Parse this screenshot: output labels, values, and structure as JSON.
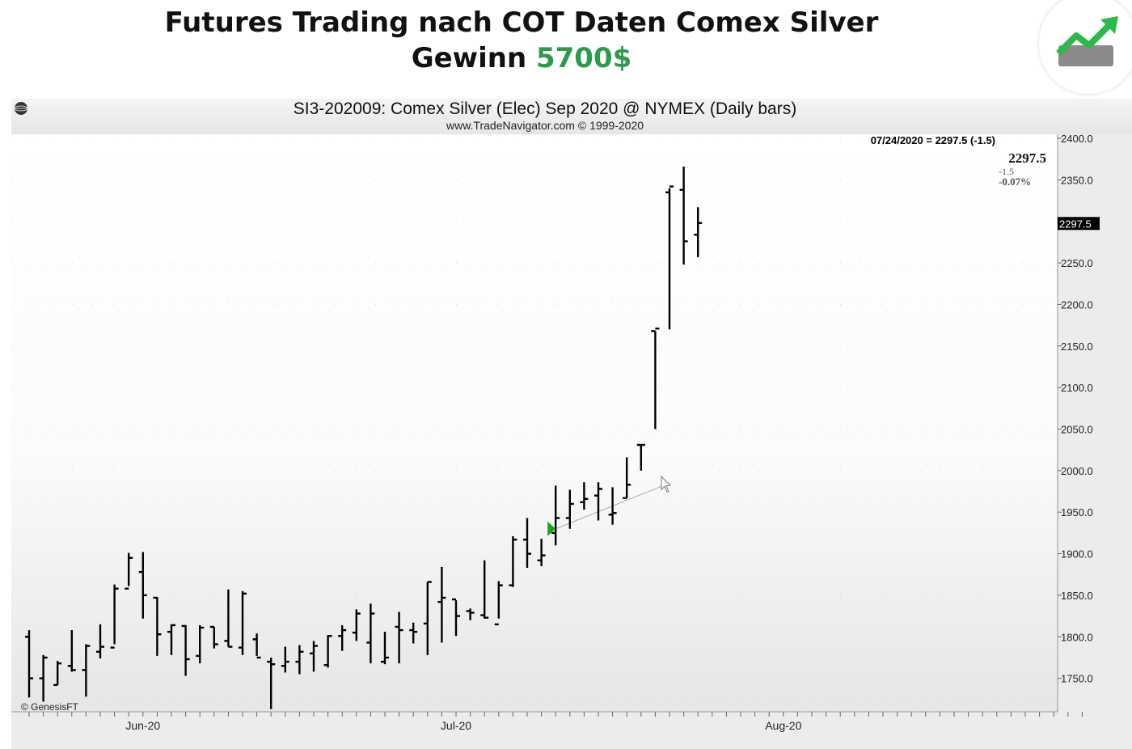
{
  "headline": {
    "line1": "Futures Trading nach COT Daten  Comex Silver",
    "line2_prefix": "Gewinn ",
    "line2_value": "5700$"
  },
  "colors": {
    "profit": "#2e9a4e",
    "signal_arrow": "#1aa51a",
    "bars": "#000000",
    "plot_bg_top": "#ffffff",
    "plot_bg_bottom": "#e8e8e8"
  },
  "logo": {
    "icon": "trending-up-icon"
  },
  "chart_header": {
    "globe_icon": "globe-icon",
    "title": "SI3-202009:  Comex Silver (Elec) Sep 2020 @ NYMEX  (Daily bars)",
    "source": "www.TradeNavigator.com © 1999-2020"
  },
  "quote": {
    "status_line": "07/24/2020 = 2297.5 (-1.5)",
    "last": "2297.5",
    "change": "-1.5",
    "change_pct": "-0.07%",
    "axis_marker": "2297.5"
  },
  "watermark": "© GenesisFT",
  "chart_data": {
    "type": "ohlc",
    "title": "SI3-202009:  Comex Silver (Elec) Sep 2020 @ NYMEX  (Daily bars)",
    "ylim": [
      1700,
      2400
    ],
    "yticks": [
      "2400.0",
      "2350.0",
      "2300.0",
      "2250.0",
      "2200.0",
      "2150.0",
      "2100.0",
      "2050.0",
      "2000.0",
      "1950.0",
      "1900.0",
      "1850.0",
      "1800.0",
      "1750.0"
    ],
    "ytick_values": [
      2400,
      2350,
      2300,
      2250,
      2200,
      2150,
      2100,
      2050,
      2000,
      1950,
      1900,
      1850,
      1800,
      1750
    ],
    "xticks": [
      {
        "label": "Jun-20",
        "index": 8
      },
      {
        "label": "Jul-20",
        "index": 30
      },
      {
        "label": "Aug-20",
        "index": 53
      }
    ],
    "n_slots": 75,
    "grid": true,
    "bars": [
      {
        "o": 1800,
        "h": 1808,
        "l": 1727,
        "c": 1750
      },
      {
        "o": 1750,
        "h": 1778,
        "l": 1722,
        "c": 1775
      },
      {
        "o": 1742,
        "h": 1771,
        "l": 1742,
        "c": 1768
      },
      {
        "o": 1765,
        "h": 1808,
        "l": 1758,
        "c": 1760
      },
      {
        "o": 1760,
        "h": 1791,
        "l": 1728,
        "c": 1789
      },
      {
        "o": 1782,
        "h": 1815,
        "l": 1774,
        "c": 1788
      },
      {
        "o": 1787,
        "h": 1863,
        "l": 1791,
        "c": 1858
      },
      {
        "o": 1858,
        "h": 1901,
        "l": 1861,
        "c": 1895
      },
      {
        "o": 1878,
        "h": 1902,
        "l": 1822,
        "c": 1850
      },
      {
        "o": 1847,
        "h": 1848,
        "l": 1777,
        "c": 1803
      },
      {
        "o": 1806,
        "h": 1815,
        "l": 1778,
        "c": 1814
      },
      {
        "o": 1813,
        "h": 1814,
        "l": 1753,
        "c": 1773
      },
      {
        "o": 1777,
        "h": 1814,
        "l": 1768,
        "c": 1811
      },
      {
        "o": 1812,
        "h": 1812,
        "l": 1786,
        "c": 1791
      },
      {
        "o": 1795,
        "h": 1857,
        "l": 1788,
        "c": 1788
      },
      {
        "o": 1787,
        "h": 1855,
        "l": 1778,
        "c": 1852
      },
      {
        "o": 1797,
        "h": 1804,
        "l": 1777,
        "c": 1775
      },
      {
        "o": 1770,
        "h": 1775,
        "l": 1713,
        "c": 1767
      },
      {
        "o": 1765,
        "h": 1788,
        "l": 1757,
        "c": 1770
      },
      {
        "o": 1770,
        "h": 1790,
        "l": 1755,
        "c": 1782
      },
      {
        "o": 1780,
        "h": 1795,
        "l": 1758,
        "c": 1789
      },
      {
        "o": 1766,
        "h": 1802,
        "l": 1763,
        "c": 1801
      },
      {
        "o": 1801,
        "h": 1814,
        "l": 1783,
        "c": 1808
      },
      {
        "o": 1805,
        "h": 1833,
        "l": 1795,
        "c": 1828
      },
      {
        "o": 1793,
        "h": 1840,
        "l": 1768,
        "c": 1828
      },
      {
        "o": 1770,
        "h": 1806,
        "l": 1767,
        "c": 1775
      },
      {
        "o": 1812,
        "h": 1830,
        "l": 1768,
        "c": 1808
      },
      {
        "o": 1808,
        "h": 1817,
        "l": 1792,
        "c": 1806
      },
      {
        "o": 1816,
        "h": 1866,
        "l": 1778,
        "c": 1866
      },
      {
        "o": 1842,
        "h": 1884,
        "l": 1793,
        "c": 1847
      },
      {
        "o": 1845,
        "h": 1844,
        "l": 1801,
        "c": 1825
      },
      {
        "o": 1831,
        "h": 1834,
        "l": 1820,
        "c": 1829
      },
      {
        "o": 1826,
        "h": 1892,
        "l": 1822,
        "c": 1823
      },
      {
        "o": 1815,
        "h": 1867,
        "l": 1822,
        "c": 1862
      },
      {
        "o": 1862,
        "h": 1921,
        "l": 1860,
        "c": 1917
      },
      {
        "o": 1917,
        "h": 1943,
        "l": 1883,
        "c": 1900
      },
      {
        "o": 1892,
        "h": 1918,
        "l": 1885,
        "c": 1898
      },
      {
        "o": 1925,
        "h": 1982,
        "l": 1910,
        "c": 1943
      },
      {
        "o": 1943,
        "h": 1977,
        "l": 1930,
        "c": 1960
      },
      {
        "o": 1962,
        "h": 1986,
        "l": 1953,
        "c": 1966
      },
      {
        "o": 1970,
        "h": 1986,
        "l": 1940,
        "c": 1978
      },
      {
        "o": 1947,
        "h": 1980,
        "l": 1935,
        "c": 1949
      },
      {
        "o": 1967,
        "h": 2016,
        "l": 1967,
        "c": 1983
      },
      {
        "o": 2031,
        "h": 2032,
        "l": 2000,
        "c": 2031
      },
      {
        "o": 2168,
        "h": 2168,
        "l": 2050,
        "c": 2171
      },
      {
        "o": 2335,
        "h": 2340,
        "l": 2170,
        "c": 2342
      },
      {
        "o": 2338,
        "h": 2366,
        "l": 2248,
        "c": 2276
      },
      {
        "o": 2284,
        "h": 2317,
        "l": 2257,
        "c": 2298
      }
    ],
    "signal": {
      "index": 37,
      "price": 1930,
      "type": "buy-arrow"
    },
    "trend_line": {
      "from": {
        "index": 37,
        "price": 1930
      },
      "to": {
        "index": 45,
        "price": 1985
      }
    }
  }
}
